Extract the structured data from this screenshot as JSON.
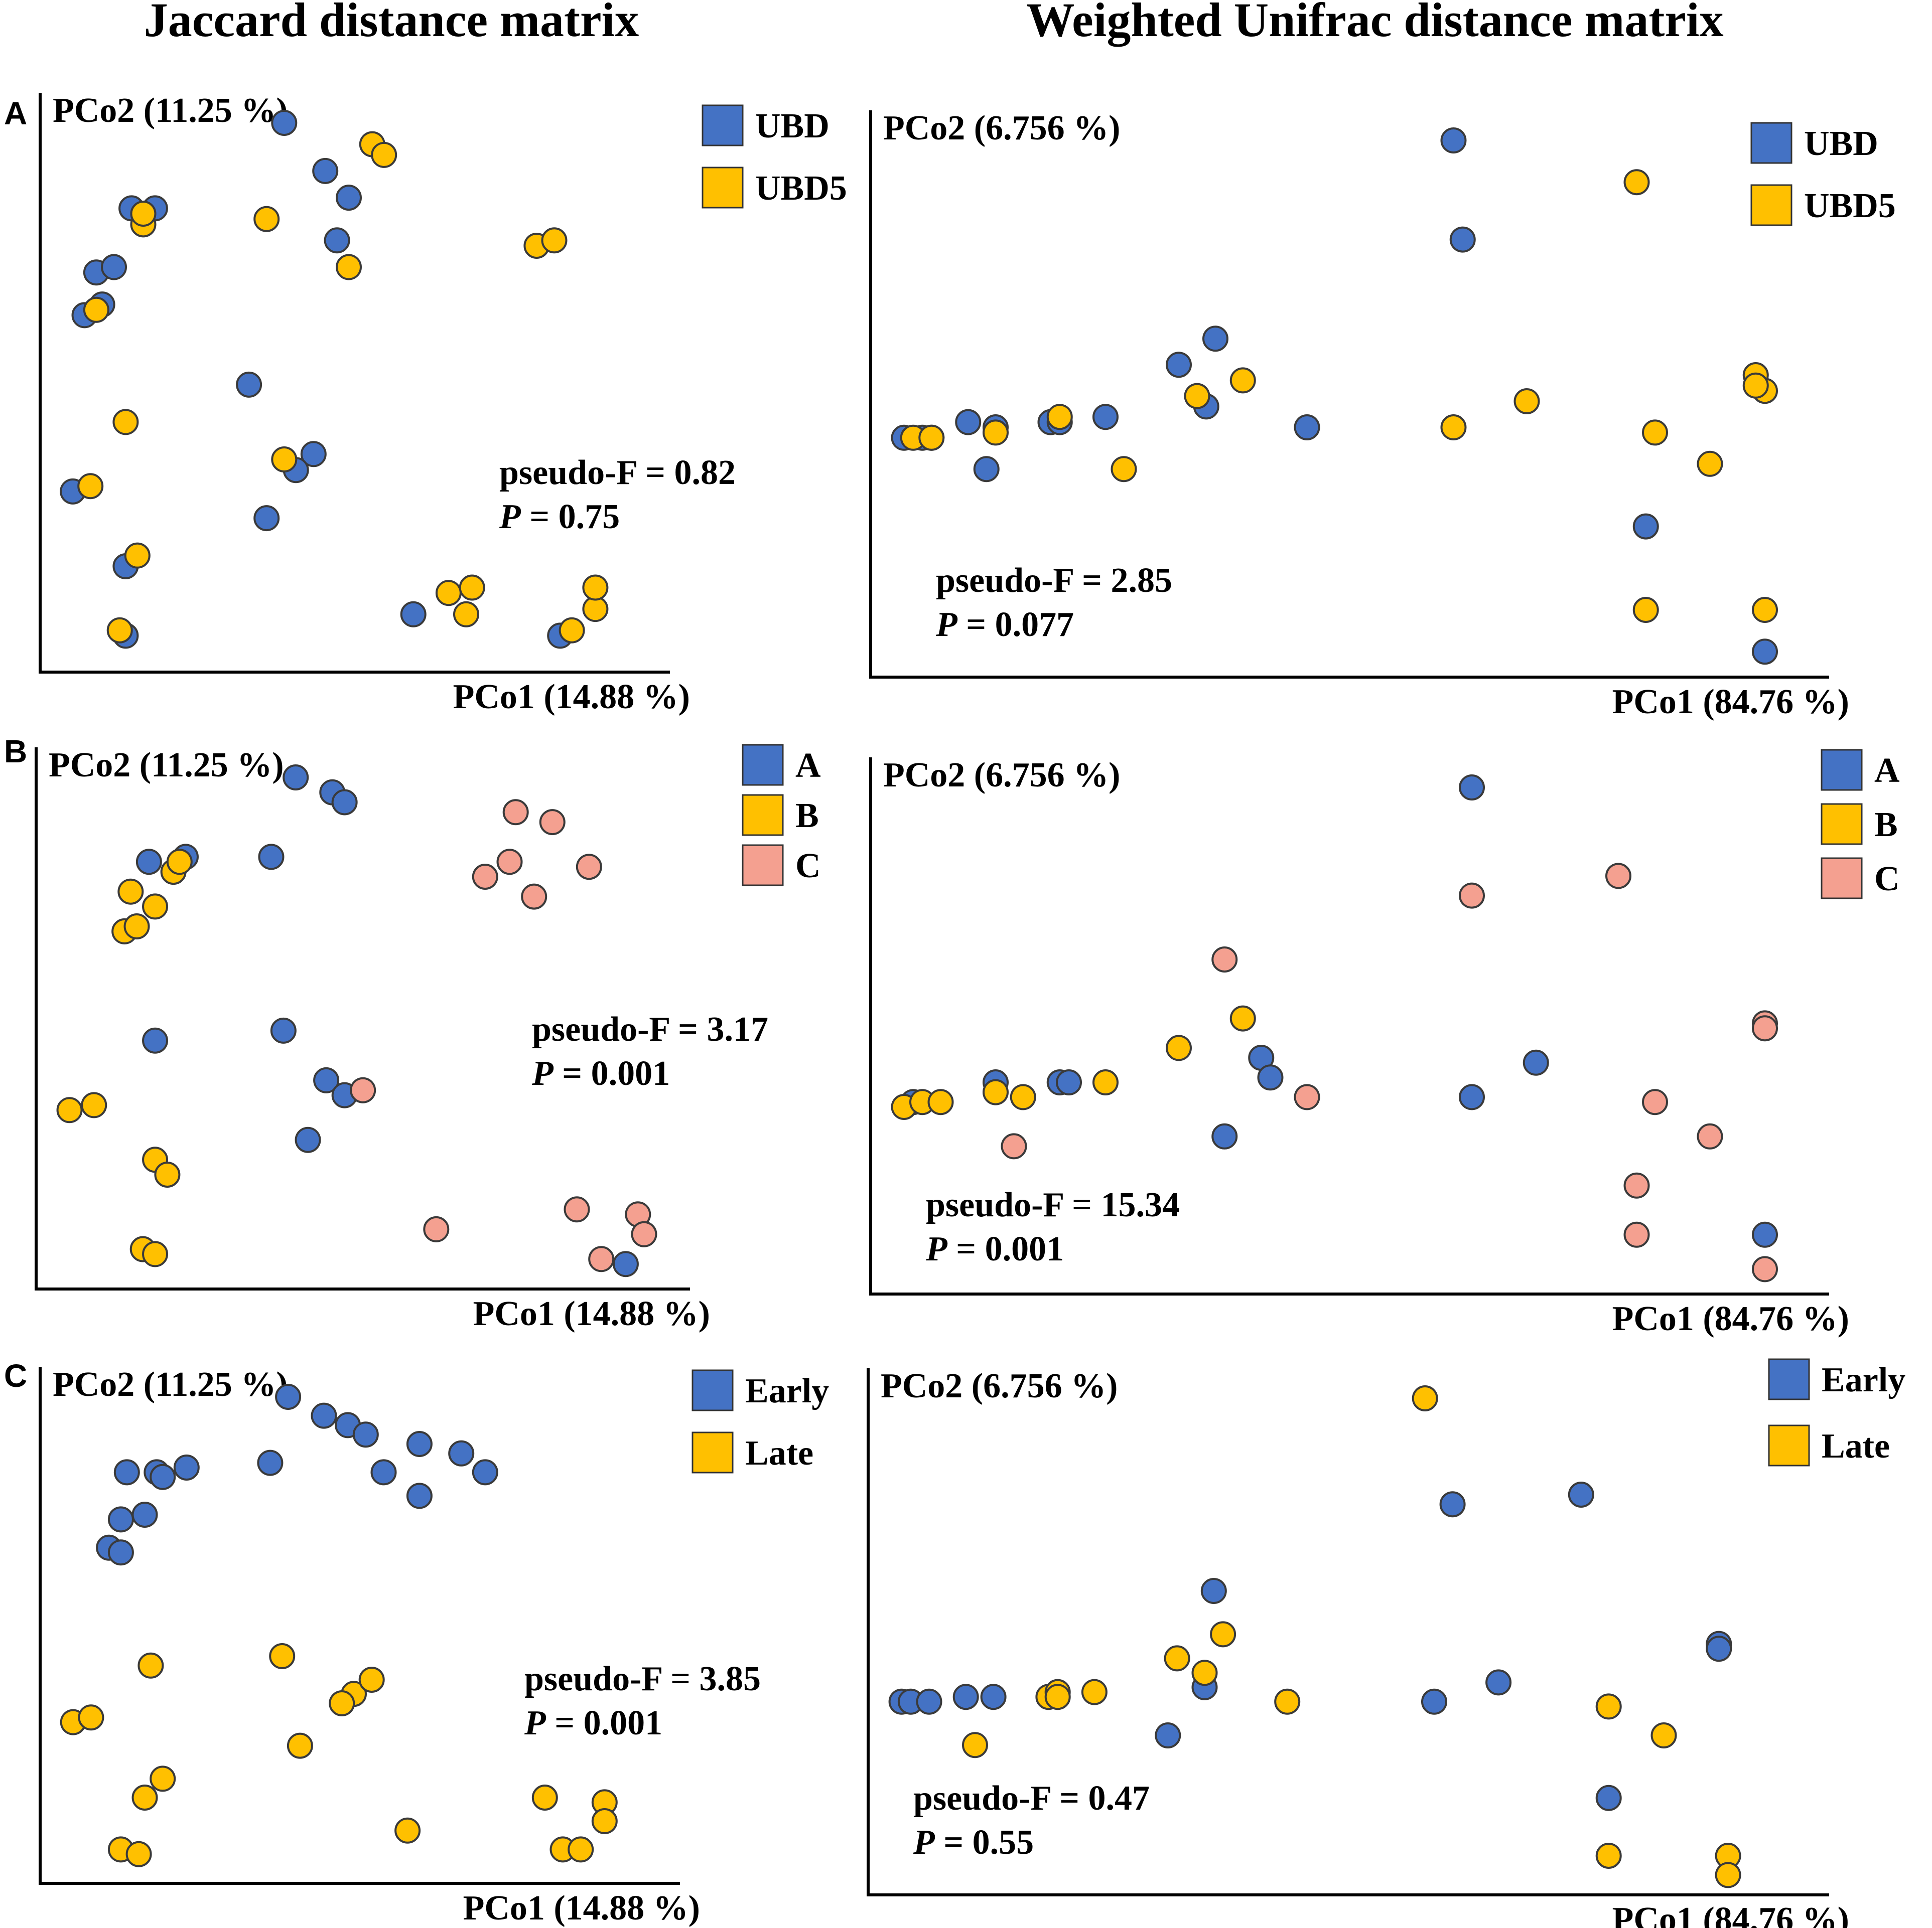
{
  "columns": [
    "Jaccard distance matrix",
    "Weighted Unifrac distance matrix"
  ],
  "panel_letters": [
    "A",
    "B",
    "C"
  ],
  "colors": {
    "blue": "#4472C4",
    "yellow": "#FFC000",
    "salmon": "#F4A090",
    "outline": "#3a3a3a"
  },
  "chart_data": [
    {
      "id": "A-jaccard",
      "type": "scatter",
      "panel": "A",
      "column": "Jaccard distance matrix",
      "xlabel": "PCo1 (14.88 %)",
      "ylabel": "PCo2 (11.25 %)",
      "xlim": [
        0,
        100
      ],
      "ylim": [
        0,
        100
      ],
      "legend": "top-right",
      "stats": {
        "pseudo_f": "pseudo-F = 0.82",
        "p_label": "P",
        "p_value": " = 0.75"
      },
      "series": [
        {
          "name": "UBD",
          "color": "#4472C4",
          "points": [
            [
              3,
              31
            ],
            [
              12,
              17
            ],
            [
              12,
              4
            ],
            [
              39,
              100
            ],
            [
              46,
              91
            ],
            [
              50,
              86
            ],
            [
              48,
              78
            ],
            [
              7,
              72
            ],
            [
              10,
              73
            ],
            [
              8,
              66
            ],
            [
              5,
              64
            ],
            [
              13,
              84
            ],
            [
              17,
              84
            ],
            [
              33,
              51
            ],
            [
              36,
              26
            ],
            [
              44,
              38
            ],
            [
              41,
              35
            ],
            [
              61,
              8
            ],
            [
              86,
              4
            ]
          ]
        },
        {
          "name": "UBD5",
          "color": "#FFC000",
          "points": [
            [
              6,
              32
            ],
            [
              12,
              44
            ],
            [
              14,
              19
            ],
            [
              11,
              5
            ],
            [
              67,
              12
            ],
            [
              71,
              13
            ],
            [
              70,
              8
            ],
            [
              88,
              5
            ],
            [
              92,
              9
            ],
            [
              92,
              13
            ],
            [
              50,
              73
            ],
            [
              82,
              77
            ],
            [
              85,
              78
            ],
            [
              54,
              96
            ],
            [
              56,
              94
            ],
            [
              7,
              65
            ],
            [
              15,
              81
            ],
            [
              15,
              83
            ],
            [
              36,
              82
            ],
            [
              39,
              37
            ]
          ]
        }
      ]
    },
    {
      "id": "A-unifrac",
      "type": "scatter",
      "panel": "A",
      "column": "Weighted Unifrac distance matrix",
      "xlabel": "PCo1 (84.76 %)",
      "ylabel": "PCo2 (6.756 %)",
      "xlim": [
        0,
        100
      ],
      "ylim": [
        0,
        100
      ],
      "legend": "top-right",
      "stats": {
        "pseudo_f": "pseudo-F = 2.85",
        "p_label": "P",
        "p_value": " = 0.077"
      },
      "series": [
        {
          "name": "UBD",
          "color": "#4472C4",
          "points": [
            [
              2,
              43
            ],
            [
              4,
              43
            ],
            [
              5,
              43
            ],
            [
              9,
              46
            ],
            [
              12,
              45
            ],
            [
              11,
              37
            ],
            [
              18,
              46
            ],
            [
              19,
              46
            ],
            [
              24,
              47
            ],
            [
              32,
              57
            ],
            [
              35,
              49
            ],
            [
              36,
              62
            ],
            [
              46,
              45
            ],
            [
              62,
              100
            ],
            [
              63,
              81
            ],
            [
              83,
              26
            ],
            [
              96,
              2
            ]
          ]
        },
        {
          "name": "UBD5",
          "color": "#FFC000",
          "points": [
            [
              3,
              43
            ],
            [
              5,
              43
            ],
            [
              12,
              44
            ],
            [
              19,
              47
            ],
            [
              26,
              37
            ],
            [
              34,
              51
            ],
            [
              39,
              54
            ],
            [
              62,
              45
            ],
            [
              70,
              50
            ],
            [
              82,
              92
            ],
            [
              84,
              44
            ],
            [
              90,
              38
            ],
            [
              83,
              10
            ],
            [
              96,
              10
            ],
            [
              95,
              55
            ],
            [
              96,
              52
            ],
            [
              95,
              53
            ]
          ]
        }
      ]
    },
    {
      "id": "B-jaccard",
      "type": "scatter",
      "panel": "B",
      "column": "Jaccard distance matrix",
      "xlabel": "PCo1 (14.88 %)",
      "ylabel": "PCo2 (11.25 %)",
      "xlim": [
        0,
        100
      ],
      "ylim": [
        0,
        100
      ],
      "legend": "top-right",
      "stats": {
        "pseudo_f": "pseudo-F = 3.17",
        "p_label": "P",
        "p_value": " = 0.001"
      },
      "series": [
        {
          "name": "A",
          "color": "#4472C4",
          "points": [
            [
              16,
              83
            ],
            [
              22,
              84
            ],
            [
              36,
              84
            ],
            [
              40,
              100
            ],
            [
              46,
              97
            ],
            [
              48,
              95
            ],
            [
              17,
              47
            ],
            [
              38,
              49
            ],
            [
              45,
              39
            ],
            [
              48,
              36
            ],
            [
              42,
              27
            ],
            [
              94,
              2
            ]
          ]
        },
        {
          "name": "B",
          "color": "#FFC000",
          "points": [
            [
              3,
              33
            ],
            [
              7,
              34
            ],
            [
              17,
              23
            ],
            [
              19,
              20
            ],
            [
              15,
              5
            ],
            [
              17,
              4
            ],
            [
              12,
              69
            ],
            [
              14,
              70
            ],
            [
              17,
              74
            ],
            [
              13,
              77
            ],
            [
              20,
              81
            ],
            [
              21,
              83
            ]
          ]
        },
        {
          "name": "C",
          "color": "#F4A090",
          "points": [
            [
              51,
              37
            ],
            [
              63,
              9
            ],
            [
              86,
              13
            ],
            [
              96,
              12
            ],
            [
              97,
              8
            ],
            [
              90,
              3
            ],
            [
              76,
              93
            ],
            [
              82,
              91
            ],
            [
              75,
              83
            ],
            [
              88,
              82
            ],
            [
              71,
              80
            ],
            [
              79,
              76
            ]
          ]
        }
      ]
    },
    {
      "id": "B-unifrac",
      "type": "scatter",
      "panel": "B",
      "column": "Weighted Unifrac distance matrix",
      "xlabel": "PCo1 (84.76 %)",
      "ylabel": "PCo2 (6.756 %)",
      "xlim": [
        0,
        100
      ],
      "ylim": [
        0,
        100
      ],
      "legend": "top-right",
      "stats": {
        "pseudo_f": "pseudo-F = 15.34",
        "p_label": "P",
        "p_value": " = 0.001"
      },
      "series": [
        {
          "name": "A",
          "color": "#4472C4",
          "points": [
            [
              3,
              36
            ],
            [
              12,
              40
            ],
            [
              19,
              40
            ],
            [
              20,
              40
            ],
            [
              37,
              29
            ],
            [
              41,
              45
            ],
            [
              42,
              41
            ],
            [
              64,
              37
            ],
            [
              71,
              44
            ],
            [
              64,
              100
            ],
            [
              96,
              9
            ]
          ]
        },
        {
          "name": "B",
          "color": "#FFC000",
          "points": [
            [
              2,
              35
            ],
            [
              4,
              36
            ],
            [
              6,
              36
            ],
            [
              12,
              38
            ],
            [
              15,
              37
            ],
            [
              24,
              40
            ],
            [
              32,
              47
            ],
            [
              39,
              53
            ]
          ]
        },
        {
          "name": "C",
          "color": "#F4A090",
          "points": [
            [
              14,
              27
            ],
            [
              46,
              37
            ],
            [
              37,
              65
            ],
            [
              64,
              78
            ],
            [
              80,
              82
            ],
            [
              84,
              36
            ],
            [
              90,
              29
            ],
            [
              82,
              19
            ],
            [
              82,
              9
            ],
            [
              96,
              52
            ],
            [
              96,
              51
            ],
            [
              96,
              2
            ]
          ]
        }
      ]
    },
    {
      "id": "C-jaccard",
      "type": "scatter",
      "panel": "C",
      "column": "Jaccard distance matrix",
      "xlabel": "PCo1 (14.88 %)",
      "ylabel": "PCo2 (11.25 %)",
      "xlim": [
        0,
        100
      ],
      "ylim": [
        0,
        100
      ],
      "legend": "top-right",
      "stats": {
        "pseudo_f": "pseudo-F = 3.85",
        "p_label": "P",
        "p_value": " = 0.001"
      },
      "series": [
        {
          "name": "Early",
          "color": "#4472C4",
          "points": [
            [
              12,
              84
            ],
            [
              17,
              84
            ],
            [
              18,
              83
            ],
            [
              22,
              85
            ],
            [
              36,
              86
            ],
            [
              39,
              100
            ],
            [
              45,
              96
            ],
            [
              49,
              94
            ],
            [
              52,
              92
            ],
            [
              61,
              90
            ],
            [
              68,
              88
            ],
            [
              72,
              84
            ],
            [
              55,
              84
            ],
            [
              61,
              79
            ],
            [
              11,
              74
            ],
            [
              15,
              75
            ],
            [
              9,
              68
            ],
            [
              11,
              67
            ]
          ]
        },
        {
          "name": "Late",
          "color": "#FFC000",
          "points": [
            [
              3,
              31
            ],
            [
              6,
              32
            ],
            [
              16,
              43
            ],
            [
              38,
              45
            ],
            [
              50,
              37
            ],
            [
              53,
              40
            ],
            [
              48,
              35
            ],
            [
              41,
              26
            ],
            [
              18,
              19
            ],
            [
              15,
              15
            ],
            [
              11,
              4
            ],
            [
              14,
              3
            ],
            [
              59,
              8
            ],
            [
              82,
              15
            ],
            [
              85,
              4
            ],
            [
              88,
              4
            ],
            [
              92,
              14
            ],
            [
              92,
              10
            ]
          ]
        }
      ]
    },
    {
      "id": "C-unifrac",
      "type": "scatter",
      "panel": "C",
      "column": "Weighted Unifrac distance matrix",
      "xlabel": "PCo1 (84.76 %)",
      "ylabel": "PCo2 (6.756 %)",
      "xlim": [
        0,
        100
      ],
      "ylim": [
        0,
        100
      ],
      "legend": "top-right",
      "stats": {
        "pseudo_f": "pseudo-F = 0.47",
        "p_label": "P",
        "p_value": " = 0.55"
      },
      "series": [
        {
          "name": "Early",
          "color": "#4472C4",
          "points": [
            [
              2,
              37
            ],
            [
              3,
              37
            ],
            [
              5,
              37
            ],
            [
              9,
              38
            ],
            [
              12,
              38
            ],
            [
              31,
              30
            ],
            [
              35,
              40
            ],
            [
              36,
              60
            ],
            [
              60,
              37
            ],
            [
              62,
              78
            ],
            [
              67,
              41
            ],
            [
              76,
              80
            ],
            [
              79,
              17
            ],
            [
              91,
              49
            ],
            [
              91,
              48
            ]
          ]
        },
        {
          "name": "Late",
          "color": "#FFC000",
          "points": [
            [
              10,
              28
            ],
            [
              18,
              38
            ],
            [
              19,
              39
            ],
            [
              19,
              38
            ],
            [
              23,
              39
            ],
            [
              32,
              46
            ],
            [
              35,
              43
            ],
            [
              37,
              51
            ],
            [
              44,
              37
            ],
            [
              59,
              100
            ],
            [
              79,
              36
            ],
            [
              85,
              30
            ],
            [
              79,
              5
            ],
            [
              92,
              5
            ],
            [
              92,
              1
            ]
          ]
        }
      ]
    }
  ]
}
